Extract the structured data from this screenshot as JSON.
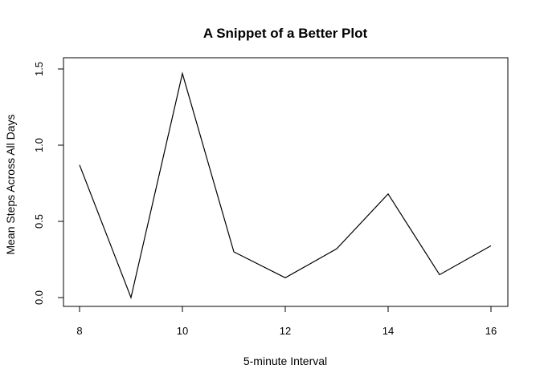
{
  "chart_data": {
    "type": "line",
    "title": "A Snippet of a Better Plot",
    "xlabel": "5-minute Interval",
    "ylabel": "Mean Steps Across All Days",
    "x": [
      8,
      9,
      10,
      11,
      12,
      13,
      14,
      15,
      16
    ],
    "series": [
      {
        "values": [
          0.87,
          0.0,
          1.47,
          0.3,
          0.13,
          0.32,
          0.68,
          0.15,
          0.34
        ],
        "color": "#000000"
      }
    ],
    "xticks": [
      8,
      10,
      12,
      14,
      16
    ],
    "yticks": [
      0.0,
      0.5,
      1.0,
      1.5
    ],
    "xtick_labels": [
      "8",
      "10",
      "12",
      "14",
      "16"
    ],
    "ytick_labels": [
      "0.0",
      "0.5",
      "1.0",
      "1.5"
    ],
    "xlim": [
      8,
      16
    ],
    "ylim": [
      0.0,
      1.5
    ],
    "grid": false,
    "legend": "none"
  }
}
